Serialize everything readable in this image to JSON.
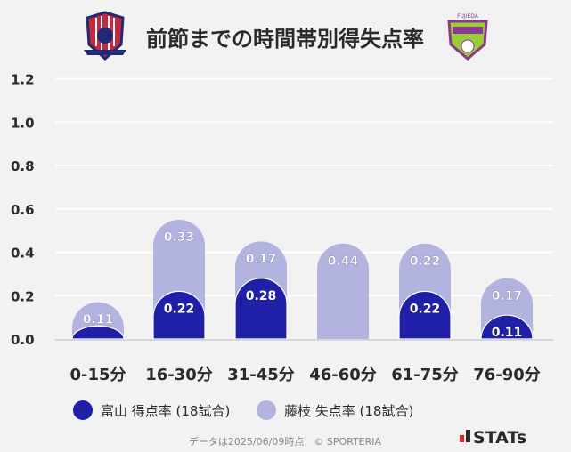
{
  "chart_data": {
    "type": "bar",
    "stacked": true,
    "title": "前節までの時間帯別得失点率",
    "categories": [
      "0-15分",
      "16-30分",
      "31-45分",
      "46-60分",
      "61-75分",
      "76-90分"
    ],
    "series": [
      {
        "name": "富山 得点率 (18試合)",
        "color": "#1f1fa8",
        "values": [
          0.06,
          0.22,
          0.28,
          0.0,
          0.22,
          0.11
        ],
        "labels": [
          "",
          "0.22",
          "0.28",
          "",
          "0.22",
          "0.11"
        ]
      },
      {
        "name": "藤枝 失点率 (18試合)",
        "color": "#b3b3df",
        "values": [
          0.11,
          0.33,
          0.17,
          0.44,
          0.22,
          0.17
        ],
        "labels": [
          "0.11",
          "0.33",
          "0.17",
          "0.44",
          "0.22",
          "0.17"
        ]
      }
    ],
    "yticks": [
      "0.0",
      "0.2",
      "0.4",
      "0.6",
      "0.8",
      "1.0",
      "1.2"
    ],
    "ylim": [
      0,
      1.2
    ],
    "grid": true,
    "legend": "bottom"
  },
  "logos": {
    "left": "Kataller Toyama",
    "right": "FUJIEDA MYFC"
  },
  "footer": "データは2025/06/09時点　© SPORTERIA",
  "brand": "STATs"
}
